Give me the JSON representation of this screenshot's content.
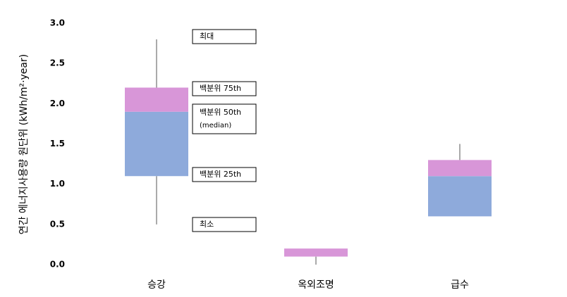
{
  "chart_data": {
    "type": "box",
    "y_label": "연간 에너지사용량 원단위 (kWh/m²·year)",
    "categories": [
      "승강",
      "옥외조명",
      "급수"
    ],
    "min": [
      0.5,
      0.0,
      0.6
    ],
    "q1": [
      1.1,
      0.1,
      0.6
    ],
    "median": [
      1.9,
      0.1,
      1.1
    ],
    "q3": [
      2.2,
      0.2,
      1.3
    ],
    "max": [
      2.8,
      0.2,
      1.5
    ],
    "lower_color": "#8eaadb",
    "upper_color": "#d896d8",
    "ylim": [
      0,
      3
    ],
    "yticks": [
      {
        "value": 0,
        "label": "0.0"
      },
      0.5,
      {
        "value": 1,
        "label": "1.0"
      },
      1.5,
      {
        "value": 2,
        "label": "2.0"
      },
      2.5,
      {
        "value": 3,
        "label": "3.0"
      }
    ],
    "annotations": [
      "최대",
      "백분위 75th",
      "백분위 50th",
      "(median)",
      "백분위 25th",
      "최소"
    ]
  }
}
